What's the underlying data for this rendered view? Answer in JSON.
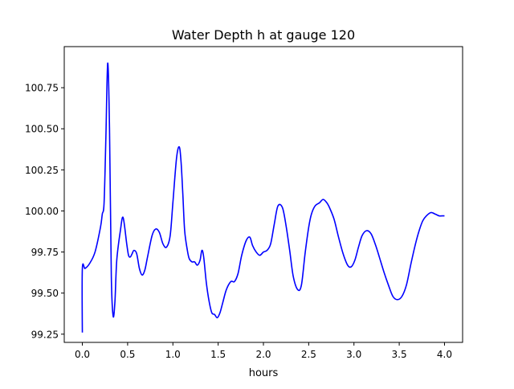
{
  "chart_data": {
    "type": "line",
    "title": "Water Depth h at gauge 120",
    "xlabel": "hours",
    "ylabel": "",
    "xlim": [
      -0.2,
      4.2
    ],
    "ylim": [
      99.2,
      101.0
    ],
    "xticks": [
      0.0,
      0.5,
      1.0,
      1.5,
      2.0,
      2.5,
      3.0,
      3.5,
      4.0
    ],
    "xtick_labels": [
      "0.0",
      "0.5",
      "1.0",
      "1.5",
      "2.0",
      "2.5",
      "3.0",
      "3.5",
      "4.0"
    ],
    "yticks": [
      99.25,
      99.5,
      99.75,
      100.0,
      100.25,
      100.5,
      100.75
    ],
    "ytick_labels": [
      "99.25",
      "99.50",
      "99.75",
      "100.00",
      "100.25",
      "100.50",
      "100.75"
    ],
    "grid": false,
    "series": [
      {
        "color": "#0000ff",
        "x": [
          0.0,
          0.0,
          0.03,
          0.08,
          0.14,
          0.2,
          0.22,
          0.24,
          0.26,
          0.28,
          0.3,
          0.32,
          0.34,
          0.36,
          0.38,
          0.42,
          0.45,
          0.49,
          0.51,
          0.53,
          0.55,
          0.57,
          0.6,
          0.63,
          0.66,
          0.69,
          0.72,
          0.77,
          0.81,
          0.85,
          0.89,
          0.93,
          0.97,
          1.0,
          1.04,
          1.07,
          1.09,
          1.11,
          1.13,
          1.16,
          1.18,
          1.21,
          1.24,
          1.27,
          1.3,
          1.32,
          1.34,
          1.37,
          1.4,
          1.43,
          1.46,
          1.49,
          1.52,
          1.55,
          1.59,
          1.64,
          1.68,
          1.72,
          1.76,
          1.81,
          1.85,
          1.88,
          1.92,
          1.96,
          2.0,
          2.04,
          2.08,
          2.12,
          2.16,
          2.21,
          2.25,
          2.29,
          2.33,
          2.38,
          2.42,
          2.46,
          2.5,
          2.53,
          2.57,
          2.62,
          2.66,
          2.7,
          2.73,
          2.78,
          2.83,
          2.88,
          2.93,
          2.97,
          3.01,
          3.05,
          3.09,
          3.14,
          3.19,
          3.24,
          3.28,
          3.33,
          3.38,
          3.43,
          3.48,
          3.53,
          3.58,
          3.63,
          3.68,
          3.72,
          3.76,
          3.8,
          3.85,
          3.9,
          3.94,
          3.97,
          3.99,
          4.0
        ],
        "y": [
          99.26,
          99.65,
          99.65,
          99.68,
          99.75,
          99.9,
          99.98,
          100.05,
          100.45,
          100.9,
          100.5,
          99.6,
          99.36,
          99.45,
          99.7,
          99.88,
          99.96,
          99.8,
          99.73,
          99.72,
          99.74,
          99.76,
          99.74,
          99.65,
          99.61,
          99.64,
          99.72,
          99.85,
          99.89,
          99.87,
          99.8,
          99.78,
          99.85,
          100.05,
          100.32,
          100.39,
          100.3,
          100.1,
          99.88,
          99.76,
          99.71,
          99.69,
          99.69,
          99.67,
          99.7,
          99.76,
          99.72,
          99.56,
          99.45,
          99.38,
          99.37,
          99.35,
          99.38,
          99.44,
          99.52,
          99.57,
          99.57,
          99.62,
          99.73,
          99.82,
          99.84,
          99.79,
          99.75,
          99.73,
          99.75,
          99.76,
          99.8,
          99.92,
          100.03,
          100.02,
          99.91,
          99.76,
          99.6,
          99.52,
          99.55,
          99.74,
          99.9,
          99.98,
          100.03,
          100.05,
          100.07,
          100.05,
          100.02,
          99.95,
          99.84,
          99.74,
          99.67,
          99.66,
          99.7,
          99.78,
          99.85,
          99.88,
          99.86,
          99.79,
          99.72,
          99.63,
          99.55,
          99.48,
          99.46,
          99.48,
          99.55,
          99.68,
          99.8,
          99.88,
          99.94,
          99.97,
          99.99,
          99.98,
          99.97,
          99.97,
          99.97,
          99.97
        ]
      }
    ]
  }
}
